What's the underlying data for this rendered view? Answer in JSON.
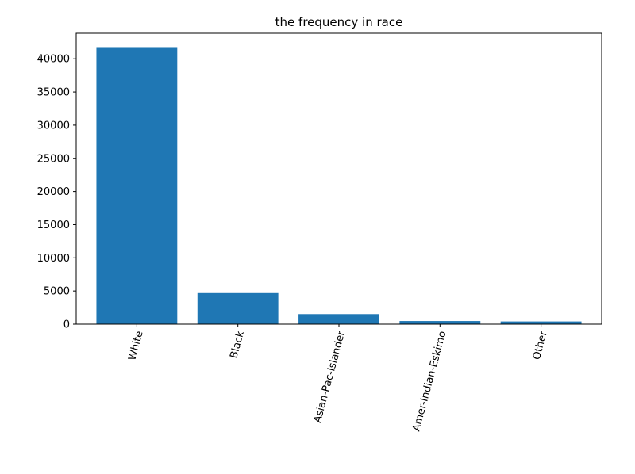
{
  "chart_data": {
    "type": "bar",
    "title": "the frequency in race",
    "xlabel": "",
    "ylabel": "",
    "categories": [
      "White",
      "Black",
      "Asian-Pac-Islander",
      "Amer-Indian-Eskimo",
      "Other"
    ],
    "values": [
      41762,
      4685,
      1519,
      470,
      406
    ],
    "ylim": [
      0,
      43850
    ],
    "yticks": [
      0,
      5000,
      10000,
      15000,
      20000,
      25000,
      30000,
      35000,
      40000
    ],
    "ytick_labels": [
      "0",
      "5000",
      "10000",
      "15000",
      "20000",
      "25000",
      "30000",
      "35000",
      "40000"
    ],
    "xtick_rotation": 75,
    "grid": false,
    "bar_color": "#1f77b4"
  }
}
